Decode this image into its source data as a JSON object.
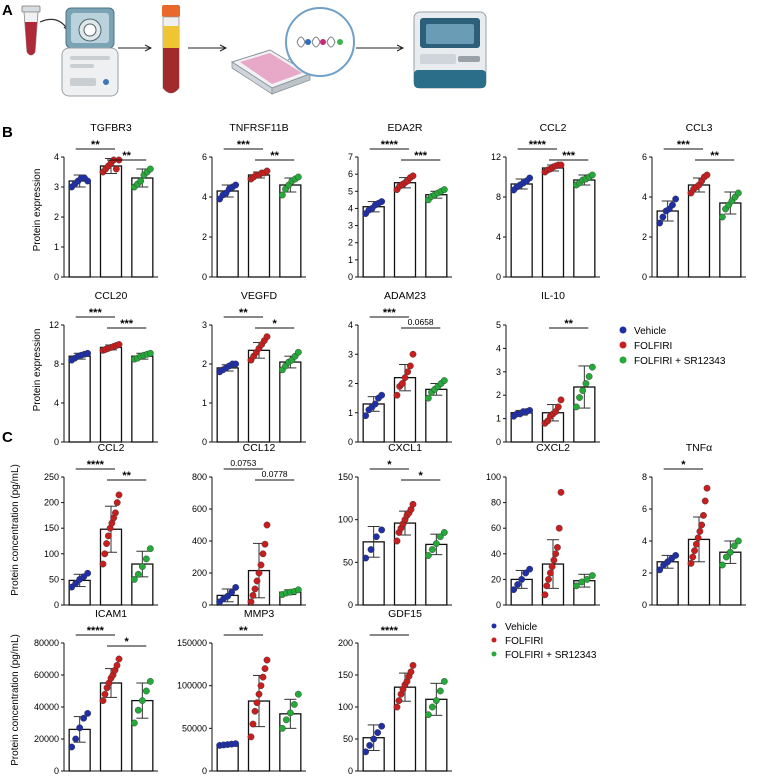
{
  "panel_labels": [
    "A",
    "B",
    "C"
  ],
  "colors": {
    "vehicle": "#1f2fa8",
    "folfiri": "#c81e1e",
    "sr": "#27a83a",
    "axis": "#111111"
  },
  "icons": [
    "blood-tube-icon",
    "centrifuge-icon",
    "plasma-tube-icon",
    "well-plate-icon",
    "proximity-assay-icon",
    "analyzer-instrument-icon"
  ],
  "y_labels": {
    "b": "Protein expression",
    "c": "Protein concentration (pg/mL)"
  },
  "legend": [
    "Vehicle",
    "FOLFIRI",
    "FOLFIRI + SR12343"
  ],
  "chart_data": [
    {
      "type": "bar",
      "panel": "B",
      "title": "TGFBR3",
      "categories": [
        "Vehicle",
        "FOLFIRI",
        "FOLFIRI + SR12343"
      ],
      "means": [
        3.2,
        3.7,
        3.3
      ],
      "sd": [
        0.2,
        0.25,
        0.3
      ],
      "points": [
        [
          3.0,
          3.1,
          3.2,
          3.3,
          3.3,
          3.2
        ],
        [
          3.5,
          3.6,
          3.7,
          3.8,
          3.9,
          3.6,
          3.9
        ],
        [
          3.0,
          3.1,
          3.2,
          3.4,
          3.5,
          3.6
        ]
      ],
      "ylim": [
        0,
        4
      ],
      "yticks": [
        0,
        1,
        2,
        3,
        4
      ],
      "comparisons": [
        {
          "a": 0,
          "b": 1,
          "label": "**"
        },
        {
          "a": 1,
          "b": 2,
          "label": "**"
        }
      ]
    },
    {
      "type": "bar",
      "panel": "B",
      "title": "TNFRSF11B",
      "categories": [
        "Vehicle",
        "FOLFIRI",
        "FOLFIRI + SR12343"
      ],
      "means": [
        4.3,
        5.1,
        4.6
      ],
      "sd": [
        0.3,
        0.15,
        0.35
      ],
      "points": [
        [
          3.9,
          4.1,
          4.2,
          4.4,
          4.5,
          4.6
        ],
        [
          4.9,
          5.0,
          5.1,
          5.1,
          5.2,
          5.2,
          5.3
        ],
        [
          4.1,
          4.4,
          4.6,
          4.8,
          4.9,
          5.0
        ]
      ],
      "ylim": [
        0,
        6
      ],
      "yticks": [
        0,
        2,
        4,
        6
      ],
      "comparisons": [
        {
          "a": 0,
          "b": 1,
          "label": "***"
        },
        {
          "a": 1,
          "b": 2,
          "label": "**"
        }
      ]
    },
    {
      "type": "bar",
      "panel": "B",
      "title": "EDA2R",
      "categories": [
        "Vehicle",
        "FOLFIRI",
        "FOLFIRI + SR12343"
      ],
      "means": [
        4.1,
        5.5,
        4.8
      ],
      "sd": [
        0.3,
        0.3,
        0.2
      ],
      "points": [
        [
          3.7,
          3.9,
          4.0,
          4.2,
          4.3,
          4.4
        ],
        [
          5.1,
          5.3,
          5.4,
          5.5,
          5.6,
          5.8,
          5.9
        ],
        [
          4.5,
          4.7,
          4.8,
          4.9,
          5.0,
          5.1
        ]
      ],
      "ylim": [
        0,
        7
      ],
      "yticks": [
        0,
        1,
        2,
        3,
        4,
        5,
        6,
        7
      ],
      "comparisons": [
        {
          "a": 0,
          "b": 1,
          "label": "****"
        },
        {
          "a": 1,
          "b": 2,
          "label": "***"
        }
      ]
    },
    {
      "type": "bar",
      "panel": "B",
      "title": "CCL2",
      "categories": [
        "Vehicle",
        "FOLFIRI",
        "FOLFIRI + SR12343"
      ],
      "means": [
        9.3,
        10.9,
        9.7
      ],
      "sd": [
        0.5,
        0.3,
        0.5
      ],
      "points": [
        [
          8.7,
          9.0,
          9.2,
          9.4,
          9.6,
          9.9
        ],
        [
          10.5,
          10.7,
          10.8,
          11.0,
          11.1,
          11.2,
          11.2
        ],
        [
          9.2,
          9.4,
          9.7,
          9.8,
          10.0,
          10.2
        ]
      ],
      "ylim": [
        0,
        12
      ],
      "yticks": [
        0,
        4,
        8,
        12
      ],
      "comparisons": [
        {
          "a": 0,
          "b": 1,
          "label": "****"
        },
        {
          "a": 1,
          "b": 2,
          "label": "***"
        }
      ]
    },
    {
      "type": "bar",
      "panel": "B",
      "title": "CCL3",
      "categories": [
        "Vehicle",
        "FOLFIRI",
        "FOLFIRI + SR12343"
      ],
      "means": [
        3.3,
        4.6,
        3.7
      ],
      "sd": [
        0.5,
        0.35,
        0.55
      ],
      "points": [
        [
          2.7,
          3.0,
          3.3,
          3.4,
          3.6,
          3.9
        ],
        [
          4.2,
          4.4,
          4.5,
          4.6,
          4.8,
          5.0,
          5.1
        ],
        [
          3.0,
          3.4,
          3.6,
          3.8,
          4.0,
          4.2
        ]
      ],
      "ylim": [
        0,
        6
      ],
      "yticks": [
        0,
        2,
        4,
        6
      ],
      "comparisons": [
        {
          "a": 0,
          "b": 1,
          "label": "***"
        },
        {
          "a": 1,
          "b": 2,
          "label": "**"
        }
      ]
    },
    {
      "type": "bar",
      "panel": "B",
      "title": "CCL20",
      "categories": [
        "Vehicle",
        "FOLFIRI",
        "FOLFIRI + SR12343"
      ],
      "means": [
        8.8,
        9.7,
        8.8
      ],
      "sd": [
        0.3,
        0.25,
        0.3
      ],
      "points": [
        [
          8.4,
          8.6,
          8.8,
          8.9,
          9.0,
          9.1
        ],
        [
          9.4,
          9.5,
          9.6,
          9.7,
          9.8,
          9.9,
          10.0
        ],
        [
          8.5,
          8.6,
          8.8,
          8.9,
          9.0,
          9.1
        ]
      ],
      "ylim": [
        0,
        12
      ],
      "yticks": [
        0,
        4,
        8,
        12
      ],
      "comparisons": [
        {
          "a": 0,
          "b": 1,
          "label": "***"
        },
        {
          "a": 1,
          "b": 2,
          "label": "***"
        }
      ]
    },
    {
      "type": "bar",
      "panel": "B",
      "title": "VEGFD",
      "categories": [
        "Vehicle",
        "FOLFIRI",
        "FOLFIRI + SR12343"
      ],
      "means": [
        1.9,
        2.35,
        2.05
      ],
      "sd": [
        0.08,
        0.2,
        0.15
      ],
      "points": [
        [
          1.8,
          1.85,
          1.9,
          1.95,
          2.0,
          2.0
        ],
        [
          2.1,
          2.2,
          2.3,
          2.4,
          2.5,
          2.6,
          2.7
        ],
        [
          1.85,
          1.95,
          2.05,
          2.1,
          2.2,
          2.3
        ]
      ],
      "ylim": [
        0,
        3
      ],
      "yticks": [
        0,
        1,
        2,
        3
      ],
      "comparisons": [
        {
          "a": 0,
          "b": 1,
          "label": "**"
        },
        {
          "a": 1,
          "b": 2,
          "label": "*"
        }
      ]
    },
    {
      "type": "bar",
      "panel": "B",
      "title": "ADAM23",
      "categories": [
        "Vehicle",
        "FOLFIRI",
        "FOLFIRI + SR12343"
      ],
      "means": [
        1.3,
        2.2,
        1.8
      ],
      "sd": [
        0.25,
        0.45,
        0.2
      ],
      "points": [
        [
          0.9,
          1.1,
          1.2,
          1.3,
          1.5,
          1.6
        ],
        [
          1.6,
          1.9,
          2.0,
          2.2,
          2.4,
          2.6,
          3.0
        ],
        [
          1.5,
          1.7,
          1.8,
          1.9,
          2.0,
          2.1
        ]
      ],
      "ylim": [
        0,
        4
      ],
      "yticks": [
        0,
        1,
        2,
        3,
        4
      ],
      "comparisons": [
        {
          "a": 0,
          "b": 1,
          "label": "***"
        },
        {
          "a": 1,
          "b": 2,
          "label": "0.0658"
        }
      ]
    },
    {
      "type": "bar",
      "panel": "B",
      "title": "IL-10",
      "categories": [
        "Vehicle",
        "FOLFIRI",
        "FOLFIRI + SR12343"
      ],
      "means": [
        1.25,
        1.25,
        2.35
      ],
      "sd": [
        0.1,
        0.35,
        0.9
      ],
      "points": [
        [
          1.1,
          1.2,
          1.2,
          1.3,
          1.3,
          1.35
        ],
        [
          0.8,
          0.9,
          1.1,
          1.2,
          1.3,
          1.5,
          1.8
        ],
        [
          1.5,
          1.9,
          2.2,
          2.5,
          2.8,
          3.2
        ]
      ],
      "ylim": [
        0,
        5
      ],
      "yticks": [
        0,
        1,
        2,
        3,
        4,
        5
      ],
      "comparisons": [
        {
          "a": 1,
          "b": 2,
          "label": "**"
        }
      ]
    },
    {
      "type": "bar",
      "panel": "C",
      "title": "CCL2",
      "categories": [
        "Vehicle",
        "FOLFIRI",
        "FOLFIRI + SR12343"
      ],
      "means": [
        48,
        148,
        80
      ],
      "sd": [
        12,
        45,
        25
      ],
      "points": [
        [
          35,
          42,
          50,
          55,
          62
        ],
        [
          80,
          100,
          120,
          135,
          150,
          160,
          170,
          180,
          200,
          215
        ],
        [
          50,
          60,
          75,
          90,
          110
        ]
      ],
      "ylim": [
        0,
        250
      ],
      "yticks": [
        0,
        50,
        100,
        150,
        200,
        250
      ],
      "comparisons": [
        {
          "a": 0,
          "b": 1,
          "label": "****"
        },
        {
          "a": 1,
          "b": 2,
          "label": "**"
        }
      ]
    },
    {
      "type": "bar",
      "panel": "C",
      "title": "CCL12",
      "categories": [
        "Vehicle",
        "FOLFIRI",
        "FOLFIRI + SR12343"
      ],
      "means": [
        60,
        215,
        80
      ],
      "sd": [
        40,
        170,
        15
      ],
      "points": [
        [
          20,
          40,
          55,
          80,
          110
        ],
        [
          20,
          60,
          100,
          150,
          200,
          250,
          320,
          380,
          500
        ],
        [
          65,
          75,
          80,
          85,
          95
        ]
      ],
      "ylim": [
        0,
        800
      ],
      "yticks": [
        0,
        200,
        400,
        600,
        800
      ],
      "comparisons": [
        {
          "a": 0,
          "b": 1,
          "label": "0.0753"
        },
        {
          "a": 1,
          "b": 2,
          "label": "0.0778"
        }
      ]
    },
    {
      "type": "bar",
      "panel": "C",
      "title": "CXCL1",
      "categories": [
        "Vehicle",
        "FOLFIRI",
        "FOLFIRI + SR12343"
      ],
      "means": [
        74,
        96,
        71
      ],
      "sd": [
        18,
        14,
        12
      ],
      "points": [
        [
          55,
          65,
          80,
          88
        ],
        [
          75,
          85,
          90,
          95,
          100,
          105,
          108,
          112,
          118
        ],
        [
          58,
          65,
          72,
          80,
          85
        ]
      ],
      "ylim": [
        0,
        150
      ],
      "yticks": [
        0,
        50,
        100,
        150
      ],
      "comparisons": [
        {
          "a": 0,
          "b": 1,
          "label": "*"
        },
        {
          "a": 1,
          "b": 2,
          "label": "*"
        }
      ]
    },
    {
      "type": "bar",
      "panel": "C",
      "title": "CXCL2",
      "categories": [
        "Vehicle",
        "FOLFIRI",
        "FOLFIRI + SR12343"
      ],
      "means": [
        20,
        32,
        19
      ],
      "sd": [
        7,
        19,
        5
      ],
      "points": [
        [
          12,
          16,
          20,
          25,
          28
        ],
        [
          8,
          15,
          20,
          25,
          30,
          35,
          40,
          45,
          60,
          88
        ],
        [
          15,
          18,
          20,
          23
        ]
      ],
      "ylim": [
        0,
        100
      ],
      "yticks": [
        0,
        20,
        40,
        60,
        80,
        100
      ],
      "comparisons": []
    },
    {
      "type": "bar",
      "panel": "C",
      "title": "TNFα",
      "categories": [
        "Vehicle",
        "FOLFIRI",
        "FOLFIRI + SR12343"
      ],
      "means": [
        2.7,
        4.1,
        3.3
      ],
      "sd": [
        0.4,
        1.4,
        0.7
      ],
      "points": [
        [
          2.2,
          2.5,
          2.7,
          2.9,
          3.1
        ],
        [
          2.6,
          3.0,
          3.4,
          3.8,
          4.2,
          4.6,
          5.0,
          5.6,
          6.5,
          7.3
        ],
        [
          2.5,
          3.0,
          3.3,
          3.7,
          4.0
        ]
      ],
      "ylim": [
        0,
        8
      ],
      "yticks": [
        0,
        2,
        4,
        6,
        8
      ],
      "comparisons": [
        {
          "a": 0,
          "b": 1,
          "label": "*"
        }
      ]
    },
    {
      "type": "bar",
      "panel": "C",
      "title": "ICAM1",
      "categories": [
        "Vehicle",
        "FOLFIRI",
        "FOLFIRI + SR12343"
      ],
      "means": [
        26000,
        55000,
        44000
      ],
      "sd": [
        8000,
        9000,
        11000
      ],
      "points": [
        [
          15000,
          20000,
          27000,
          33000,
          36000
        ],
        [
          44000,
          48000,
          52000,
          55000,
          58000,
          60000,
          63000,
          66000,
          70000
        ],
        [
          30000,
          38000,
          44000,
          50000,
          56000
        ]
      ],
      "ylim": [
        0,
        80000
      ],
      "yticks": [
        0,
        20000,
        40000,
        60000,
        80000
      ],
      "comparisons": [
        {
          "a": 0,
          "b": 1,
          "label": "****"
        },
        {
          "a": 1,
          "b": 2,
          "label": "*"
        }
      ]
    },
    {
      "type": "bar",
      "panel": "C",
      "title": "MMP3",
      "categories": [
        "Vehicle",
        "FOLFIRI",
        "FOLFIRI + SR12343"
      ],
      "means": [
        31000,
        82000,
        67000
      ],
      "sd": [
        1000,
        30000,
        17000
      ],
      "points": [
        [
          30000,
          30500,
          31000,
          31500,
          32000
        ],
        [
          40000,
          55000,
          70000,
          80000,
          90000,
          100000,
          110000,
          120000,
          130000
        ],
        [
          50000,
          60000,
          68000,
          78000,
          90000
        ]
      ],
      "ylim": [
        0,
        150000
      ],
      "yticks": [
        0,
        50000,
        100000,
        150000
      ],
      "comparisons": [
        {
          "a": 0,
          "b": 1,
          "label": "**"
        }
      ]
    },
    {
      "type": "bar",
      "panel": "C",
      "title": "GDF15",
      "categories": [
        "Vehicle",
        "FOLFIRI",
        "FOLFIRI + SR12343"
      ],
      "means": [
        52,
        131,
        112
      ],
      "sd": [
        20,
        22,
        25
      ],
      "points": [
        [
          30,
          40,
          50,
          60,
          70
        ],
        [
          100,
          110,
          120,
          128,
          135,
          140,
          148,
          155,
          165
        ],
        [
          88,
          100,
          110,
          125,
          140
        ]
      ],
      "ylim": [
        0,
        200
      ],
      "yticks": [
        0,
        50,
        100,
        150,
        200
      ],
      "comparisons": [
        {
          "a": 0,
          "b": 1,
          "label": "****"
        }
      ]
    }
  ]
}
